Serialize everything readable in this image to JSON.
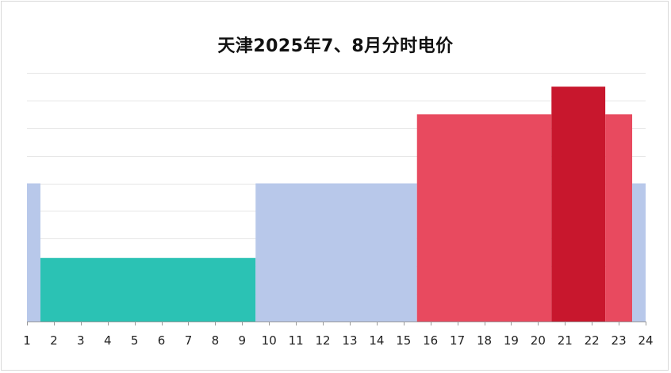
{
  "chart_data": {
    "type": "bar",
    "title": "天津2025年7、8月分时电价",
    "xlabel": "",
    "ylabel": "",
    "x_ticks": [
      "1",
      "2",
      "3",
      "4",
      "5",
      "6",
      "7",
      "8",
      "9",
      "10",
      "11",
      "12",
      "13",
      "14",
      "15",
      "16",
      "17",
      "18",
      "19",
      "20",
      "21",
      "22",
      "23",
      "24"
    ],
    "x_domain": [
      1,
      24
    ],
    "y_domain": [
      0,
      9
    ],
    "grid": true,
    "grid_lines": [
      1,
      2,
      3,
      4,
      5,
      6,
      7,
      8,
      9
    ],
    "legend": "none",
    "series": [
      {
        "color": "#b8c8ea",
        "start": 1,
        "end": 1.5,
        "value": 5
      },
      {
        "color": "#2bc2b4",
        "start": 1.5,
        "end": 9.5,
        "value": 2.3
      },
      {
        "color": "#b8c8ea",
        "start": 9.5,
        "end": 15.5,
        "value": 5
      },
      {
        "color": "#e84a5f",
        "start": 15.5,
        "end": 20.5,
        "value": 7.5
      },
      {
        "color": "#c8172d",
        "start": 20.5,
        "end": 22.5,
        "value": 8.5
      },
      {
        "color": "#e84a5f",
        "start": 22.5,
        "end": 23.5,
        "value": 7.5
      },
      {
        "color": "#b8c8ea",
        "start": 23.5,
        "end": 24,
        "value": 5
      }
    ],
    "colors": {
      "valley": "#2bc2b4",
      "flat": "#b8c8ea",
      "peak": "#e84a5f",
      "sharp_peak": "#c8172d",
      "grid": "#e6e6e6",
      "axis": "#999999"
    }
  }
}
